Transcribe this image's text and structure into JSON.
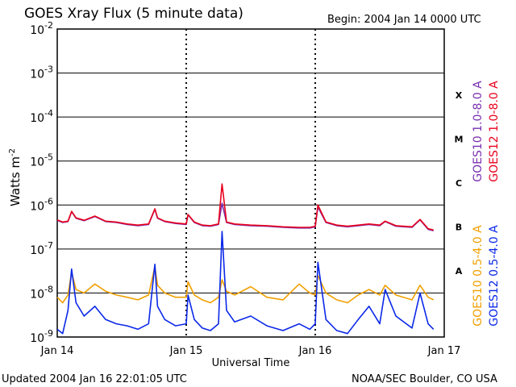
{
  "colors": {
    "goes10_long": "#7a2fb0",
    "goes12_long": "#e8001c",
    "goes10_short": "#f0a000",
    "goes12_short": "#0a28e8",
    "axes": "#000000"
  },
  "chart_data": {
    "type": "line",
    "title": "GOES Xray Flux (5 minute data)",
    "begin_label": "Begin:  2004 Jan 14 0000 UTC",
    "xlabel": "Universal Time",
    "ylabel_base": "Watts m",
    "ylabel_exp": "-2",
    "footer_left": "Updated 2004 Jan 16 22:01:05 UTC",
    "footer_right": "NOAA/SEC Boulder, CO USA",
    "y_scale": "log",
    "ylim": [
      1e-09,
      0.01
    ],
    "xlim": [
      "2004-01-14 00:00",
      "2004-01-17 00:00"
    ],
    "grid": "horizontal at each decade, dotted verticals at day boundaries",
    "x_ticks": [
      {
        "label": "Jan 14",
        "value": "2004-01-14 00:00"
      },
      {
        "label": "Jan 15",
        "value": "2004-01-15 00:00"
      },
      {
        "label": "Jan 16",
        "value": "2004-01-16 00:00"
      },
      {
        "label": "Jan 17",
        "value": "2004-01-17 00:00"
      }
    ],
    "y_ticks": [
      {
        "base": "10",
        "exp": "-2",
        "value": 0.01
      },
      {
        "base": "10",
        "exp": "-3",
        "value": 0.001
      },
      {
        "base": "10",
        "exp": "-4",
        "value": 0.0001
      },
      {
        "base": "10",
        "exp": "-5",
        "value": 1e-05
      },
      {
        "base": "10",
        "exp": "-6",
        "value": 1e-06
      },
      {
        "base": "10",
        "exp": "-7",
        "value": 1e-07
      },
      {
        "base": "10",
        "exp": "-8",
        "value": 1e-08
      },
      {
        "base": "10",
        "exp": "-9",
        "value": 1e-09
      }
    ],
    "flare_classes": [
      {
        "label": "X",
        "value": 0.000316
      },
      {
        "label": "M",
        "value": 3.16e-05
      },
      {
        "label": "C",
        "value": 3.16e-06
      },
      {
        "label": "B",
        "value": 3.16e-07
      },
      {
        "label": "A",
        "value": 3.16e-08
      }
    ],
    "series": [
      {
        "name": "GOES10 1.0-8.0 A",
        "color_key": "goes10_long",
        "x": [
          "2004-01-14 00:00",
          "2004-01-14 01:00",
          "2004-01-14 02:00",
          "2004-01-14 02:40",
          "2004-01-14 03:30",
          "2004-01-14 05:00",
          "2004-01-14 07:00",
          "2004-01-14 09:00",
          "2004-01-14 11:00",
          "2004-01-14 13:00",
          "2004-01-14 15:00",
          "2004-01-14 17:00",
          "2004-01-14 18:10",
          "2004-01-14 18:40",
          "2004-01-14 20:00",
          "2004-01-14 22:00",
          "2004-01-15 00:00",
          "2004-01-15 00:20",
          "2004-01-15 01:30",
          "2004-01-15 03:00",
          "2004-01-15 04:30",
          "2004-01-15 06:00",
          "2004-01-15 06:40",
          "2004-01-15 07:30",
          "2004-01-15 09:00",
          "2004-01-15 12:00",
          "2004-01-15 15:00",
          "2004-01-15 18:00",
          "2004-01-15 21:00",
          "2004-01-15 23:00",
          "2004-01-16 00:00",
          "2004-01-16 00:30",
          "2004-01-16 02:00",
          "2004-01-16 04:00",
          "2004-01-16 06:00",
          "2004-01-16 08:00",
          "2004-01-16 10:00",
          "2004-01-16 12:00",
          "2004-01-16 13:00",
          "2004-01-16 15:00",
          "2004-01-16 18:00",
          "2004-01-16 19:30",
          "2004-01-16 21:00",
          "2004-01-16 22:00"
        ],
        "y": [
          4.5e-07,
          4e-07,
          4.2e-07,
          7e-07,
          5e-07,
          4.4e-07,
          5.5e-07,
          4.2e-07,
          4e-07,
          3.6e-07,
          3.4e-07,
          3.6e-07,
          8e-07,
          5e-07,
          4.2e-07,
          3.8e-07,
          3.6e-07,
          6e-07,
          4e-07,
          3.4e-07,
          3.3e-07,
          3.6e-07,
          1.1e-06,
          4e-07,
          3.6e-07,
          3.4e-07,
          3.3e-07,
          3.1e-07,
          3e-07,
          3e-07,
          3.2e-07,
          9e-07,
          4e-07,
          3.4e-07,
          3.2e-07,
          3.4e-07,
          3.6e-07,
          3.4e-07,
          4.2e-07,
          3.3e-07,
          3.1e-07,
          4.6e-07,
          2.8e-07,
          2.6e-07
        ]
      },
      {
        "name": "GOES12 1.0-8.0 A",
        "color_key": "goes12_long",
        "x": [
          "2004-01-14 00:00",
          "2004-01-14 01:00",
          "2004-01-14 02:00",
          "2004-01-14 02:40",
          "2004-01-14 03:30",
          "2004-01-14 05:00",
          "2004-01-14 07:00",
          "2004-01-14 09:00",
          "2004-01-14 11:00",
          "2004-01-14 13:00",
          "2004-01-14 15:00",
          "2004-01-14 17:00",
          "2004-01-14 18:10",
          "2004-01-14 18:40",
          "2004-01-14 20:00",
          "2004-01-14 22:00",
          "2004-01-15 00:00",
          "2004-01-15 00:20",
          "2004-01-15 01:30",
          "2004-01-15 03:00",
          "2004-01-15 04:30",
          "2004-01-15 06:00",
          "2004-01-15 06:40",
          "2004-01-15 07:30",
          "2004-01-15 09:00",
          "2004-01-15 12:00",
          "2004-01-15 15:00",
          "2004-01-15 18:00",
          "2004-01-15 21:00",
          "2004-01-15 23:00",
          "2004-01-16 00:00",
          "2004-01-16 00:30",
          "2004-01-16 02:00",
          "2004-01-16 04:00",
          "2004-01-16 06:00",
          "2004-01-16 08:00",
          "2004-01-16 10:00",
          "2004-01-16 12:00",
          "2004-01-16 13:00",
          "2004-01-16 15:00",
          "2004-01-16 18:00",
          "2004-01-16 19:30",
          "2004-01-16 21:00",
          "2004-01-16 22:00"
        ],
        "y": [
          4.6e-07,
          4.1e-07,
          4.3e-07,
          7.2e-07,
          5.1e-07,
          4.5e-07,
          5.6e-07,
          4.3e-07,
          4.1e-07,
          3.7e-07,
          3.5e-07,
          3.7e-07,
          8.2e-07,
          5.1e-07,
          4.3e-07,
          3.9e-07,
          3.7e-07,
          6.1e-07,
          4.1e-07,
          3.5e-07,
          3.4e-07,
          3.7e-07,
          3e-06,
          4.1e-07,
          3.7e-07,
          3.5e-07,
          3.4e-07,
          3.2e-07,
          3.1e-07,
          3.1e-07,
          3.3e-07,
          1e-06,
          4.1e-07,
          3.5e-07,
          3.3e-07,
          3.5e-07,
          3.7e-07,
          3.5e-07,
          4.3e-07,
          3.4e-07,
          3.2e-07,
          4.7e-07,
          2.9e-07,
          2.7e-07
        ]
      },
      {
        "name": "GOES10 0.5-4.0 A",
        "color_key": "goes10_short",
        "x": [
          "2004-01-14 00:00",
          "2004-01-14 01:00",
          "2004-01-14 02:00",
          "2004-01-14 02:40",
          "2004-01-14 03:30",
          "2004-01-14 05:00",
          "2004-01-14 07:00",
          "2004-01-14 09:00",
          "2004-01-14 11:00",
          "2004-01-14 13:00",
          "2004-01-14 15:00",
          "2004-01-14 17:00",
          "2004-01-14 18:10",
          "2004-01-14 18:40",
          "2004-01-14 20:00",
          "2004-01-14 22:00",
          "2004-01-15 00:00",
          "2004-01-15 00:20",
          "2004-01-15 01:30",
          "2004-01-15 03:00",
          "2004-01-15 04:30",
          "2004-01-15 06:00",
          "2004-01-15 06:40",
          "2004-01-15 07:30",
          "2004-01-15 09:00",
          "2004-01-15 12:00",
          "2004-01-15 15:00",
          "2004-01-15 18:00",
          "2004-01-15 21:00",
          "2004-01-15 23:00",
          "2004-01-16 00:00",
          "2004-01-16 00:30",
          "2004-01-16 02:00",
          "2004-01-16 04:00",
          "2004-01-16 06:00",
          "2004-01-16 08:00",
          "2004-01-16 10:00",
          "2004-01-16 12:00",
          "2004-01-16 13:00",
          "2004-01-16 15:00",
          "2004-01-16 18:00",
          "2004-01-16 19:30",
          "2004-01-16 21:00",
          "2004-01-16 22:00"
        ],
        "y": [
          8e-09,
          6e-09,
          9e-09,
          3e-08,
          1.2e-08,
          1e-08,
          1.6e-08,
          1.1e-08,
          9e-09,
          8e-09,
          7e-09,
          9e-09,
          4e-08,
          1.5e-08,
          1e-08,
          8e-09,
          8e-09,
          1.8e-08,
          9e-09,
          7e-09,
          6e-09,
          8e-09,
          2e-08,
          1.1e-08,
          9e-09,
          1.4e-08,
          8e-09,
          7e-09,
          1.6e-08,
          1e-08,
          9e-09,
          2.5e-08,
          1e-08,
          7e-09,
          6e-09,
          9e-09,
          1.2e-08,
          9e-09,
          1.5e-08,
          9e-09,
          7e-09,
          1.5e-08,
          8e-09,
          7e-09
        ]
      },
      {
        "name": "GOES12 0.5-4.0 A",
        "color_key": "goes12_short",
        "x": [
          "2004-01-14 00:00",
          "2004-01-14 01:00",
          "2004-01-14 02:00",
          "2004-01-14 02:40",
          "2004-01-14 03:30",
          "2004-01-14 05:00",
          "2004-01-14 07:00",
          "2004-01-14 09:00",
          "2004-01-14 11:00",
          "2004-01-14 13:00",
          "2004-01-14 15:00",
          "2004-01-14 17:00",
          "2004-01-14 18:10",
          "2004-01-14 18:40",
          "2004-01-14 20:00",
          "2004-01-14 22:00",
          "2004-01-15 00:00",
          "2004-01-15 00:20",
          "2004-01-15 01:30",
          "2004-01-15 03:00",
          "2004-01-15 04:30",
          "2004-01-15 06:00",
          "2004-01-15 06:40",
          "2004-01-15 07:30",
          "2004-01-15 09:00",
          "2004-01-15 12:00",
          "2004-01-15 15:00",
          "2004-01-15 18:00",
          "2004-01-15 21:00",
          "2004-01-15 23:00",
          "2004-01-16 00:00",
          "2004-01-16 00:30",
          "2004-01-16 02:00",
          "2004-01-16 04:00",
          "2004-01-16 06:00",
          "2004-01-16 08:00",
          "2004-01-16 10:00",
          "2004-01-16 12:00",
          "2004-01-16 13:00",
          "2004-01-16 15:00",
          "2004-01-16 18:00",
          "2004-01-16 19:30",
          "2004-01-16 21:00",
          "2004-01-16 22:00"
        ],
        "y": [
          1.5e-09,
          1.2e-09,
          4e-09,
          3.5e-08,
          6e-09,
          3e-09,
          5e-09,
          2.5e-09,
          2e-09,
          1.8e-09,
          1.5e-09,
          2e-09,
          4.5e-08,
          5e-09,
          2.5e-09,
          1.8e-09,
          2e-09,
          9e-09,
          2.5e-09,
          1.6e-09,
          1.4e-09,
          2e-09,
          2.5e-07,
          4e-09,
          2.2e-09,
          3e-09,
          1.8e-09,
          1.4e-09,
          2e-09,
          1.5e-09,
          2e-09,
          5e-08,
          2.5e-09,
          1.4e-09,
          1.2e-09,
          2.5e-09,
          5e-09,
          2e-09,
          1.2e-08,
          3e-09,
          1.6e-09,
          1e-08,
          2e-09,
          1.5e-09
        ]
      }
    ]
  }
}
